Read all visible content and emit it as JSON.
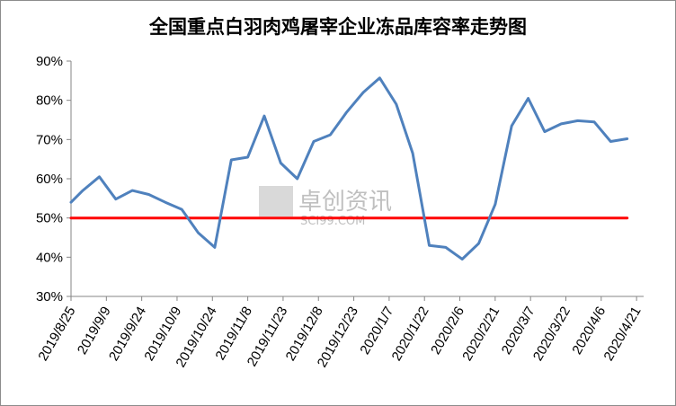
{
  "chart_data": {
    "type": "line",
    "title": "全国重点白羽肉鸡屠宰企业冻品库容率走势图",
    "xlabel": "",
    "ylabel": "",
    "ylim": [
      0.3,
      0.9
    ],
    "y_ticks": [
      0.3,
      0.4,
      0.5,
      0.6,
      0.7,
      0.8,
      0.9
    ],
    "y_tick_labels": [
      "30%",
      "40%",
      "50%",
      "60%",
      "70%",
      "80%",
      "90%"
    ],
    "x_tick_labels": [
      "2019/8/25",
      "2019/9/9",
      "2019/9/24",
      "2019/10/9",
      "2019/10/24",
      "2019/11/8",
      "2019/11/23",
      "2019/12/8",
      "2019/12/23",
      "2020/1/7",
      "2020/1/22",
      "2020/2/6",
      "2020/2/21",
      "2020/3/7",
      "2020/3/22",
      "2020/4/6",
      "2020/4/21"
    ],
    "grid": false,
    "series": [
      {
        "color": "#4f81bd",
        "x": [
          "2019/8/25",
          "2019/8/30",
          "2019/9/6",
          "2019/9/13",
          "2019/9/20",
          "2019/9/27",
          "2019/10/4",
          "2019/10/11",
          "2019/10/18",
          "2019/10/25",
          "2019/11/1",
          "2019/11/8",
          "2019/11/15",
          "2019/11/22",
          "2019/11/29",
          "2019/12/6",
          "2019/12/13",
          "2019/12/20",
          "2019/12/27",
          "2020/1/3",
          "2020/1/10",
          "2020/1/17",
          "2020/1/24",
          "2020/1/31",
          "2020/2/7",
          "2020/2/14",
          "2020/2/21",
          "2020/2/28",
          "2020/3/6",
          "2020/3/13",
          "2020/3/20",
          "2020/3/27",
          "2020/4/3",
          "2020/4/10",
          "2020/4/17"
        ],
        "values": [
          0.54,
          0.57,
          0.605,
          0.548,
          0.57,
          0.56,
          0.54,
          0.522,
          0.462,
          0.425,
          0.648,
          0.655,
          0.76,
          0.64,
          0.6,
          0.695,
          0.712,
          0.77,
          0.82,
          0.857,
          0.79,
          0.665,
          0.43,
          0.425,
          0.395,
          0.435,
          0.535,
          0.735,
          0.805,
          0.72,
          0.74,
          0.748,
          0.745,
          0.695,
          0.702
        ]
      },
      {
        "color": "#ff0000",
        "x": [
          "2019/8/25",
          "2020/4/17"
        ],
        "values": [
          0.5,
          0.5
        ]
      }
    ]
  },
  "watermark": {
    "text": "卓创资讯",
    "subtext": "SCI99.COM"
  }
}
